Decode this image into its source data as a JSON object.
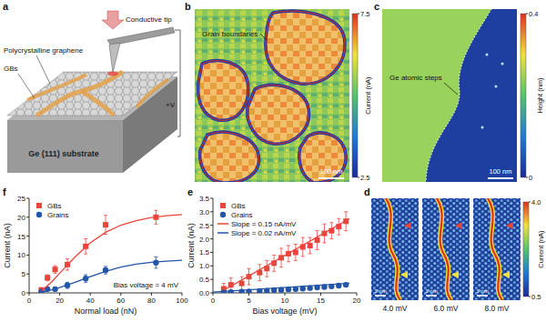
{
  "panels": {
    "a": {
      "label": "a",
      "tip": "Conductive tip",
      "graphene": "Polycrystalline graphene",
      "boundaries": "GBs",
      "bias": "+V",
      "substrate": "Ge (111) substrate"
    },
    "b": {
      "label": "b",
      "annotation": "Grain boundaries",
      "scale_bar": "100 nm",
      "colorbar": {
        "title": "Current (nA)",
        "range": [
          2.5,
          7.5
        ],
        "ticks": [
          2.5,
          7.5
        ]
      }
    },
    "c": {
      "label": "c",
      "annotation": "Ge atomic steps",
      "scale_bar": "100 nm",
      "colorbar": {
        "title": "Height (nm)",
        "range": [
          0,
          0.4
        ],
        "ticks": [
          0,
          0.4
        ]
      }
    },
    "d": {
      "label": "d",
      "images": [
        "4.0 mV",
        "6.0 mV",
        "8.0 mV"
      ],
      "scale_bar": "1 nm",
      "colorbar": {
        "title": "Current (nA)",
        "range": [
          0.5,
          4
        ],
        "ticks": [
          0.5,
          {
            "value": 4,
            "label": "4.0"
          }
        ]
      }
    }
  },
  "chart_data": [
    {
      "panel_label": "f",
      "type": "scatter",
      "x_label": "Normal load (nN)",
      "y_label": "Current (nA)",
      "annotation": "Bias voltage = 4 mV",
      "legend": "upper left",
      "xlim": [
        0,
        100
      ],
      "xticks": [
        0,
        20,
        40,
        60,
        80,
        100
      ],
      "ylim": [
        0,
        25
      ],
      "yticks": [
        0,
        5,
        10,
        15,
        20,
        25
      ],
      "series": [
        {
          "name": "GBs",
          "color": "#e8453c",
          "marker": "square",
          "x": [
            8,
            12,
            17,
            25,
            37,
            50,
            83
          ],
          "values": [
            0.8,
            4,
            6.2,
            7.5,
            12.3,
            18,
            20
          ],
          "errors": [
            0.4,
            0.8,
            1,
            1.5,
            2,
            2.5,
            1.8
          ]
        },
        {
          "name": "Grains",
          "color": "#2355a8",
          "marker": "circle",
          "x": [
            8,
            12,
            17,
            25,
            37,
            50,
            83
          ],
          "values": [
            0.3,
            1,
            1,
            2,
            3.8,
            6,
            8
          ],
          "errors": [
            0.2,
            0.4,
            0.5,
            0.8,
            1,
            1,
            1.5
          ]
        },
        {
          "type": "line",
          "color": "#e8453c",
          "line_style": "solid",
          "x": [
            8,
            15,
            20,
            30,
            40,
            50,
            60,
            70,
            80,
            90,
            100
          ],
          "values": [
            0.5,
            3,
            5.2,
            9.5,
            13.2,
            16,
            17.9,
            19.1,
            19.9,
            20.4,
            20.7
          ]
        },
        {
          "type": "line",
          "color": "#2355a8",
          "line_style": "solid",
          "x": [
            8,
            15,
            20,
            30,
            40,
            50,
            60,
            70,
            80,
            90,
            100
          ],
          "values": [
            0.2,
            0.8,
            1.4,
            2.8,
            4.3,
            5.7,
            6.8,
            7.6,
            8.1,
            8.4,
            8.6
          ]
        }
      ]
    },
    {
      "panel_label": "e",
      "type": "scatter",
      "x_label": "Bias voltage (mV)",
      "y_label": "Current (nA)",
      "legend": "upper left",
      "xlim": [
        0,
        20
      ],
      "xticks": [
        0,
        5,
        10,
        15,
        20
      ],
      "ylim": [
        0,
        3.5
      ],
      "yticks": [
        {
          "value": 0,
          "label": "0.0"
        },
        0.5,
        {
          "value": 1,
          "label": "1.0"
        },
        1.5,
        {
          "value": 2,
          "label": "2.0"
        },
        2.5,
        {
          "value": 3,
          "label": "3.0"
        },
        3.5
      ],
      "series": [
        {
          "name": "GBs",
          "color": "#e8453c",
          "marker": "square",
          "x": [
            1.5,
            2.5,
            4,
            5,
            6.5,
            7.5,
            8.5,
            9.5,
            10.5,
            11.5,
            12.5,
            13.5,
            14.5,
            15.5,
            16.5,
            17.5,
            18.5
          ],
          "values": [
            0.15,
            0.3,
            0.35,
            0.6,
            0.75,
            0.9,
            1.1,
            1.3,
            1.45,
            1.5,
            1.7,
            1.75,
            1.95,
            2.2,
            2.3,
            2.45,
            2.65
          ],
          "errors": [
            0.2,
            0.25,
            0.25,
            0.3,
            0.3,
            0.3,
            0.3,
            0.35,
            0.3,
            0.3,
            0.35,
            0.3,
            0.35,
            0.35,
            0.3,
            0.3,
            0.35
          ]
        },
        {
          "name": "Grains",
          "color": "#2355a8",
          "marker": "circle",
          "x": [
            1.5,
            2.5,
            4,
            5,
            6.5,
            7.5,
            8.5,
            9.5,
            10.5,
            11.5,
            12.5,
            13.5,
            14.5,
            15.5,
            16.5,
            17.5,
            18.5
          ],
          "values": [
            0.02,
            0.03,
            0.04,
            0.05,
            0.07,
            0.08,
            0.1,
            0.11,
            0.13,
            0.14,
            0.16,
            0.18,
            0.2,
            0.22,
            0.24,
            0.27,
            0.3
          ],
          "errors": [
            0.03,
            0.03,
            0.03,
            0.03,
            0.03,
            0.03,
            0.03,
            0.03,
            0.03,
            0.03,
            0.03,
            0.03,
            0.03,
            0.03,
            0.03,
            0.03,
            0.03
          ]
        },
        {
          "name": "Slope = 0.15 nA/mV",
          "type": "line",
          "color": "#e8453c",
          "line_style": "solid",
          "x": [
            1.5,
            19
          ],
          "values": [
            0.1,
            2.75
          ]
        },
        {
          "name": "Slope = 0.02 nA/mV",
          "type": "line",
          "color": "#2355a8",
          "line_style": "solid",
          "x": [
            0,
            19
          ],
          "values": [
            0.03,
            0.36
          ]
        }
      ]
    }
  ]
}
